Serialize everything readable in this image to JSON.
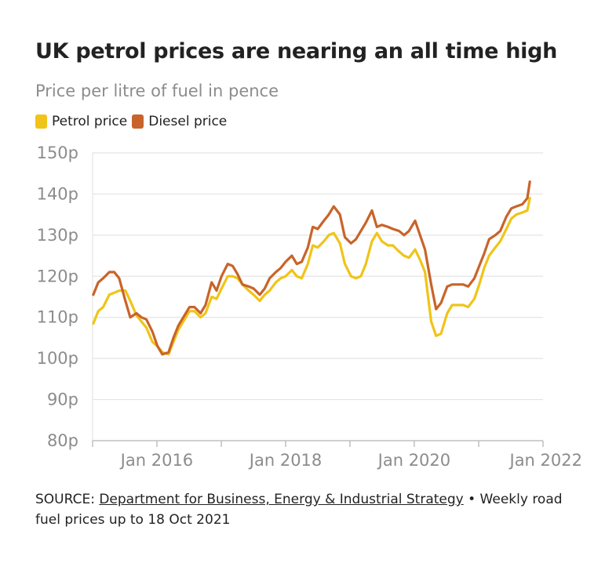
{
  "title": "UK petrol prices are nearing an all time high",
  "subtitle": "Price per litre of fuel in pence",
  "colors": {
    "petrol": "#f0c418",
    "diesel": "#c8642a",
    "grid": "#e4e4e4",
    "axis": "#bfbfbf",
    "tick_text": "#8c8c8c"
  },
  "source": {
    "prefix": "SOURCE: ",
    "link_text": "Department for Business, Energy & Industrial Strategy",
    "suffix": " • Weekly road fuel prices up to 18 Oct 2021"
  },
  "chart_data": {
    "type": "line",
    "title": "UK petrol prices are nearing an all time high",
    "subtitle": "Price per litre of fuel in pence",
    "xlabel": "",
    "ylabel": "",
    "ylim": [
      80,
      150
    ],
    "xlim": [
      "2015-01-01",
      "2022-01-01"
    ],
    "y_ticks": [
      80,
      90,
      100,
      110,
      120,
      130,
      140,
      150
    ],
    "y_tick_labels": [
      "80p",
      "90p",
      "100p",
      "110p",
      "120p",
      "130p",
      "140p",
      "150p"
    ],
    "x_tick_dates": [
      "2015-01-01",
      "2016-01-01",
      "2017-01-01",
      "2018-01-01",
      "2019-01-01",
      "2020-01-01",
      "2021-01-01",
      "2022-01-01"
    ],
    "x_tick_labels": [
      "",
      "Jan 2016",
      "",
      "Jan 2018",
      "",
      "Jan 2020",
      "",
      "Jan 2022"
    ],
    "grid": true,
    "legend": "top-left",
    "series": [
      {
        "name": "Petrol price",
        "color": "#f0c418",
        "points": [
          [
            "2015-01-05",
            108.5
          ],
          [
            "2015-02-02",
            111.5
          ],
          [
            "2015-03-02",
            112.5
          ],
          [
            "2015-04-06",
            115.5
          ],
          [
            "2015-05-04",
            116.0
          ],
          [
            "2015-06-01",
            116.5
          ],
          [
            "2015-07-06",
            116.5
          ],
          [
            "2015-08-03",
            114.0
          ],
          [
            "2015-09-07",
            110.5
          ],
          [
            "2015-10-05",
            109.0
          ],
          [
            "2015-11-02",
            107.5
          ],
          [
            "2015-12-07",
            104.0
          ],
          [
            "2016-01-04",
            103.0
          ],
          [
            "2016-02-01",
            101.5
          ],
          [
            "2016-03-07",
            101.0
          ],
          [
            "2016-04-04",
            104.0
          ],
          [
            "2016-05-02",
            107.0
          ],
          [
            "2016-06-06",
            109.5
          ],
          [
            "2016-07-04",
            111.5
          ],
          [
            "2016-08-01",
            111.5
          ],
          [
            "2016-09-05",
            110.0
          ],
          [
            "2016-10-03",
            111.0
          ],
          [
            "2016-11-07",
            115.0
          ],
          [
            "2016-12-05",
            114.5
          ],
          [
            "2017-01-02",
            117.0
          ],
          [
            "2017-02-06",
            120.0
          ],
          [
            "2017-03-06",
            120.0
          ],
          [
            "2017-04-03",
            119.5
          ],
          [
            "2017-05-01",
            118.0
          ],
          [
            "2017-06-05",
            116.5
          ],
          [
            "2017-07-03",
            115.5
          ],
          [
            "2017-08-07",
            114.0
          ],
          [
            "2017-09-04",
            115.5
          ],
          [
            "2017-10-02",
            116.5
          ],
          [
            "2017-11-06",
            118.5
          ],
          [
            "2017-12-04",
            119.5
          ],
          [
            "2018-01-01",
            120.0
          ],
          [
            "2018-02-05",
            121.5
          ],
          [
            "2018-03-05",
            120.0
          ],
          [
            "2018-04-02",
            119.5
          ],
          [
            "2018-05-07",
            123.0
          ],
          [
            "2018-06-04",
            127.5
          ],
          [
            "2018-07-02",
            127.0
          ],
          [
            "2018-08-06",
            128.5
          ],
          [
            "2018-09-03",
            130.0
          ],
          [
            "2018-10-01",
            130.5
          ],
          [
            "2018-11-05",
            128.0
          ],
          [
            "2018-12-03",
            123.0
          ],
          [
            "2019-01-07",
            120.0
          ],
          [
            "2019-02-04",
            119.5
          ],
          [
            "2019-03-04",
            120.0
          ],
          [
            "2019-04-01",
            123.0
          ],
          [
            "2019-05-06",
            128.5
          ],
          [
            "2019-06-03",
            130.5
          ],
          [
            "2019-07-01",
            128.5
          ],
          [
            "2019-08-05",
            127.5
          ],
          [
            "2019-09-02",
            127.5
          ],
          [
            "2019-10-07",
            126.0
          ],
          [
            "2019-11-04",
            125.0
          ],
          [
            "2019-12-02",
            124.5
          ],
          [
            "2020-01-06",
            126.5
          ],
          [
            "2020-02-03",
            124.0
          ],
          [
            "2020-03-02",
            121.0
          ],
          [
            "2020-04-06",
            109.0
          ],
          [
            "2020-05-04",
            105.5
          ],
          [
            "2020-06-01",
            106.0
          ],
          [
            "2020-07-06",
            111.0
          ],
          [
            "2020-08-03",
            113.0
          ],
          [
            "2020-09-07",
            113.0
          ],
          [
            "2020-10-05",
            113.0
          ],
          [
            "2020-11-02",
            112.5
          ],
          [
            "2020-12-07",
            114.5
          ],
          [
            "2021-01-04",
            118.0
          ],
          [
            "2021-02-01",
            122.0
          ],
          [
            "2021-03-01",
            125.0
          ],
          [
            "2021-04-05",
            127.0
          ],
          [
            "2021-05-03",
            128.5
          ],
          [
            "2021-06-07",
            131.5
          ],
          [
            "2021-07-05",
            134.0
          ],
          [
            "2021-08-02",
            135.0
          ],
          [
            "2021-09-06",
            135.5
          ],
          [
            "2021-10-04",
            136.0
          ],
          [
            "2021-10-18",
            139.0
          ]
        ]
      },
      {
        "name": "Diesel price",
        "color": "#c8642a",
        "points": [
          [
            "2015-01-05",
            115.5
          ],
          [
            "2015-02-02",
            118.5
          ],
          [
            "2015-03-02",
            119.5
          ],
          [
            "2015-04-06",
            121.0
          ],
          [
            "2015-05-04",
            121.0
          ],
          [
            "2015-06-01",
            119.5
          ],
          [
            "2015-07-06",
            114.0
          ],
          [
            "2015-08-03",
            110.0
          ],
          [
            "2015-09-07",
            111.0
          ],
          [
            "2015-10-05",
            110.0
          ],
          [
            "2015-11-02",
            109.5
          ],
          [
            "2015-12-07",
            106.5
          ],
          [
            "2016-01-04",
            103.0
          ],
          [
            "2016-02-01",
            101.0
          ],
          [
            "2016-03-07",
            101.5
          ],
          [
            "2016-04-04",
            105.0
          ],
          [
            "2016-05-02",
            108.0
          ],
          [
            "2016-06-06",
            110.5
          ],
          [
            "2016-07-04",
            112.5
          ],
          [
            "2016-08-01",
            112.5
          ],
          [
            "2016-09-05",
            111.0
          ],
          [
            "2016-10-03",
            113.0
          ],
          [
            "2016-11-07",
            118.5
          ],
          [
            "2016-12-05",
            116.5
          ],
          [
            "2017-01-02",
            120.0
          ],
          [
            "2017-02-06",
            123.0
          ],
          [
            "2017-03-06",
            122.5
          ],
          [
            "2017-04-03",
            120.5
          ],
          [
            "2017-05-01",
            118.0
          ],
          [
            "2017-06-05",
            117.5
          ],
          [
            "2017-07-03",
            117.0
          ],
          [
            "2017-08-07",
            115.5
          ],
          [
            "2017-09-04",
            117.0
          ],
          [
            "2017-10-02",
            119.5
          ],
          [
            "2017-11-06",
            121.0
          ],
          [
            "2017-12-04",
            122.0
          ],
          [
            "2018-01-01",
            123.5
          ],
          [
            "2018-02-05",
            125.0
          ],
          [
            "2018-03-05",
            123.0
          ],
          [
            "2018-04-02",
            123.5
          ],
          [
            "2018-05-07",
            127.0
          ],
          [
            "2018-06-04",
            132.0
          ],
          [
            "2018-07-02",
            131.5
          ],
          [
            "2018-08-06",
            133.5
          ],
          [
            "2018-09-03",
            135.0
          ],
          [
            "2018-10-01",
            137.0
          ],
          [
            "2018-11-05",
            135.0
          ],
          [
            "2018-12-03",
            129.5
          ],
          [
            "2019-01-07",
            128.0
          ],
          [
            "2019-02-04",
            129.0
          ],
          [
            "2019-03-04",
            131.0
          ],
          [
            "2019-04-01",
            133.0
          ],
          [
            "2019-05-06",
            136.0
          ],
          [
            "2019-06-03",
            132.0
          ],
          [
            "2019-07-01",
            132.5
          ],
          [
            "2019-08-05",
            132.0
          ],
          [
            "2019-09-02",
            131.5
          ],
          [
            "2019-10-07",
            131.0
          ],
          [
            "2019-11-04",
            130.0
          ],
          [
            "2019-12-02",
            131.0
          ],
          [
            "2020-01-06",
            133.5
          ],
          [
            "2020-02-03",
            130.0
          ],
          [
            "2020-03-02",
            126.5
          ],
          [
            "2020-04-06",
            118.0
          ],
          [
            "2020-05-04",
            112.0
          ],
          [
            "2020-06-01",
            113.5
          ],
          [
            "2020-07-06",
            117.5
          ],
          [
            "2020-08-03",
            118.0
          ],
          [
            "2020-09-07",
            118.0
          ],
          [
            "2020-10-05",
            118.0
          ],
          [
            "2020-11-02",
            117.5
          ],
          [
            "2020-12-07",
            119.5
          ],
          [
            "2021-01-04",
            122.5
          ],
          [
            "2021-02-01",
            125.5
          ],
          [
            "2021-03-01",
            129.0
          ],
          [
            "2021-04-05",
            130.0
          ],
          [
            "2021-05-03",
            131.0
          ],
          [
            "2021-06-07",
            134.5
          ],
          [
            "2021-07-05",
            136.5
          ],
          [
            "2021-08-02",
            137.0
          ],
          [
            "2021-09-06",
            137.5
          ],
          [
            "2021-10-04",
            139.0
          ],
          [
            "2021-10-18",
            143.0
          ]
        ]
      }
    ]
  }
}
